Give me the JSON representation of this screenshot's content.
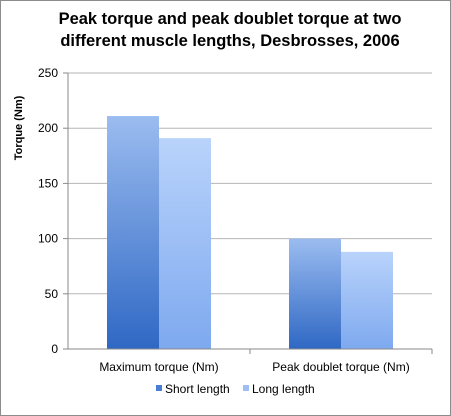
{
  "chart_data": {
    "type": "bar",
    "title_lines": [
      "Peak torque and peak doublet torque at two",
      "different muscle lengths, Desbrosses, 2006"
    ],
    "title": "Peak torque and peak doublet torque at two different muscle lengths, Desbrosses, 2006",
    "ylabel": "Torque (Nm)",
    "xlabel": "",
    "categories": [
      "Maximum torque (Nm)",
      "Peak doublet torque (Nm)"
    ],
    "series": [
      {
        "name": "Short length",
        "values": [
          211,
          100
        ],
        "color": "#4a7ed4"
      },
      {
        "name": "Long length",
        "values": [
          191,
          88
        ],
        "color": "#9dbff5"
      }
    ],
    "ylim": [
      0,
      250
    ],
    "yticks": [
      0,
      50,
      100,
      150,
      200,
      250
    ],
    "grid": true,
    "legend": "bottom"
  }
}
